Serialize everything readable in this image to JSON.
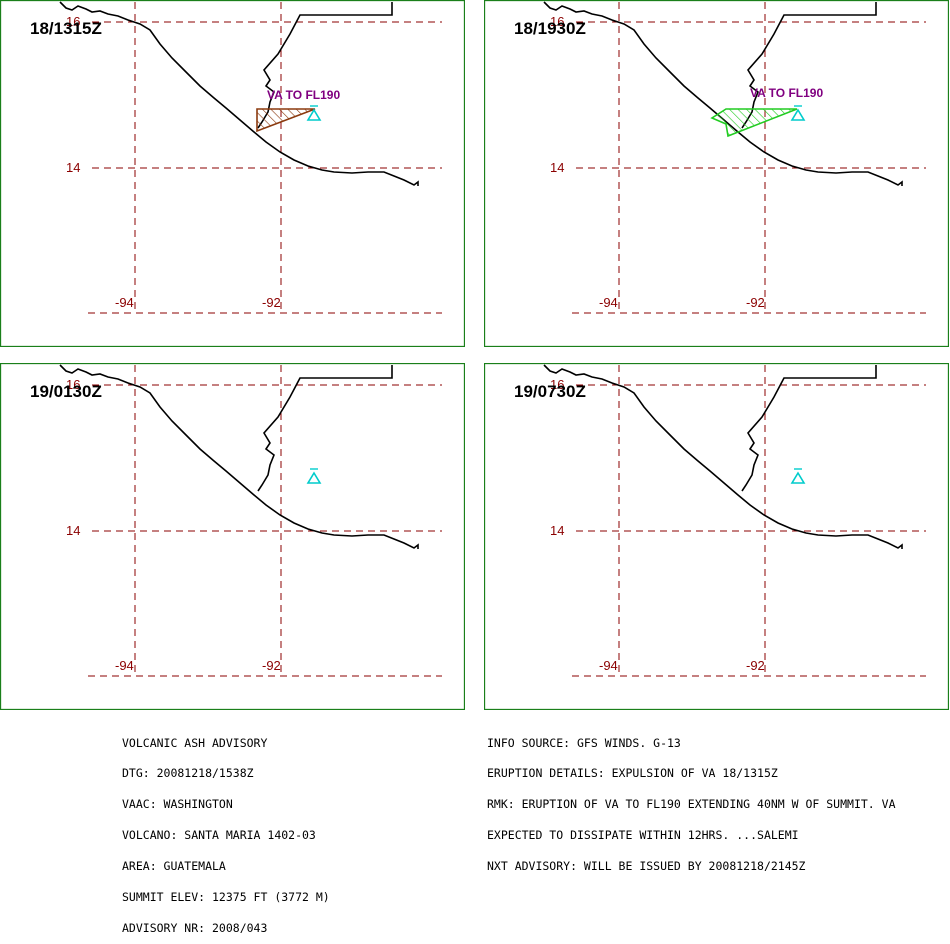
{
  "panels": [
    {
      "time": "18/1315Z",
      "ash": {
        "label": "VA TO FL190",
        "color": "#8b3a0f"
      }
    },
    {
      "time": "18/1930Z",
      "ash": {
        "label": "VA TO FL190",
        "color": "#22cc22"
      }
    },
    {
      "time": "19/0130Z",
      "ash": null
    },
    {
      "time": "19/0730Z",
      "ash": null
    }
  ],
  "grid_labels": {
    "lat_top": "16",
    "lat_mid": "14",
    "lon_left": "-94",
    "lon_right": "-92"
  },
  "colors": {
    "frame": "#1a7f1a",
    "grid": "#8b0000",
    "volcano": "#00cccc",
    "ash_text": "#800080"
  },
  "volcano_icon": "volcano-triangle-icon",
  "advisory_left": [
    "VOLCANIC ASH ADVISORY",
    "DTG: 20081218/1538Z",
    "VAAC: WASHINGTON",
    "VOLCANO: SANTA MARIA 1402-03",
    "AREA: GUATEMALA",
    "SUMMIT ELEV: 12375 FT (3772 M)",
    "ADVISORY NR: 2008/043"
  ],
  "advisory_right": [
    "INFO SOURCE: GFS WINDS. G-13",
    "ERUPTION DETAILS: EXPULSION OF VA 18/1315Z",
    "RMK: ERUPTION OF VA TO FL190 EXTENDING 40NM W OF SUMMIT. VA",
    "EXPECTED TO DISSIPATE WITHIN 12HRS. ...SALEMI",
    "NXT ADVISORY: WILL BE ISSUED BY 20081218/2145Z"
  ]
}
